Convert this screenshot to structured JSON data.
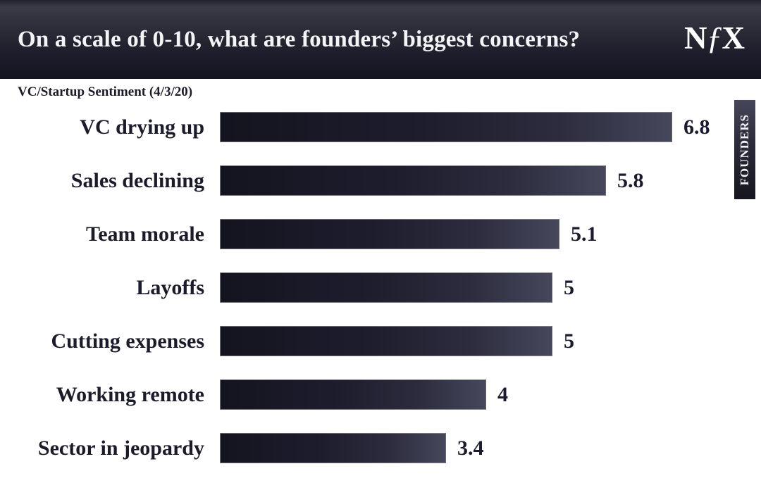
{
  "header": {
    "title": "On a scale of 0-10, what are founders’ biggest concerns?",
    "logo": {
      "n": "N",
      "f": "ƒ",
      "x": "X",
      "name": "NFX"
    }
  },
  "subtitle": "VC/Startup Sentiment (4/3/20)",
  "side_tag": "FOUNDERS",
  "colors": {
    "header_background": "#1d1d2b",
    "bar_dark": "#14141f",
    "bar_light": "#47475c",
    "text_dark": "#1b1b2b",
    "text_light": "#f4f4f6",
    "page_background": "#ffffff"
  },
  "chart_data": {
    "type": "bar",
    "orientation": "horizontal",
    "title": "On a scale of 0-10, what are founders’ biggest concerns?",
    "subtitle": "VC/Startup Sentiment (4/3/20)",
    "categories": [
      "VC drying up",
      "Sales declining",
      "Team morale",
      "Layoffs",
      "Cutting expenses",
      "Working remote",
      "Sector in jeopardy"
    ],
    "values": [
      6.8,
      5.8,
      5.1,
      5,
      5,
      4,
      3.4
    ],
    "value_labels": [
      "6.8",
      "5.8",
      "5.1",
      "5",
      "5",
      "4",
      "3.4"
    ],
    "scale_min": 0,
    "scale_max": 10,
    "bars_scaled_to_max_value": true,
    "grid": false,
    "legend": false,
    "xlabel": "",
    "ylabel": ""
  }
}
